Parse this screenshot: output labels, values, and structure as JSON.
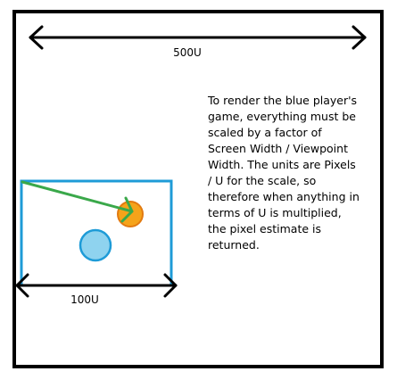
{
  "labels": {
    "world_width": "500U",
    "viewport_width": "100U"
  },
  "note": {
    "text": "To render the blue player's game, everything must be scaled by a factor of Screen Width / Viewpoint Width. The units are Pixels / U for the scale, so therefore when anything in terms of U is multiplied, the pixel estimate is returned."
  },
  "colors": {
    "world_border": "#000000",
    "viewport_border": "#1e9bd7",
    "blue_player": "#8fd3ef",
    "orange_object": "#f5a31a",
    "sight_line": "#3aa84a"
  }
}
